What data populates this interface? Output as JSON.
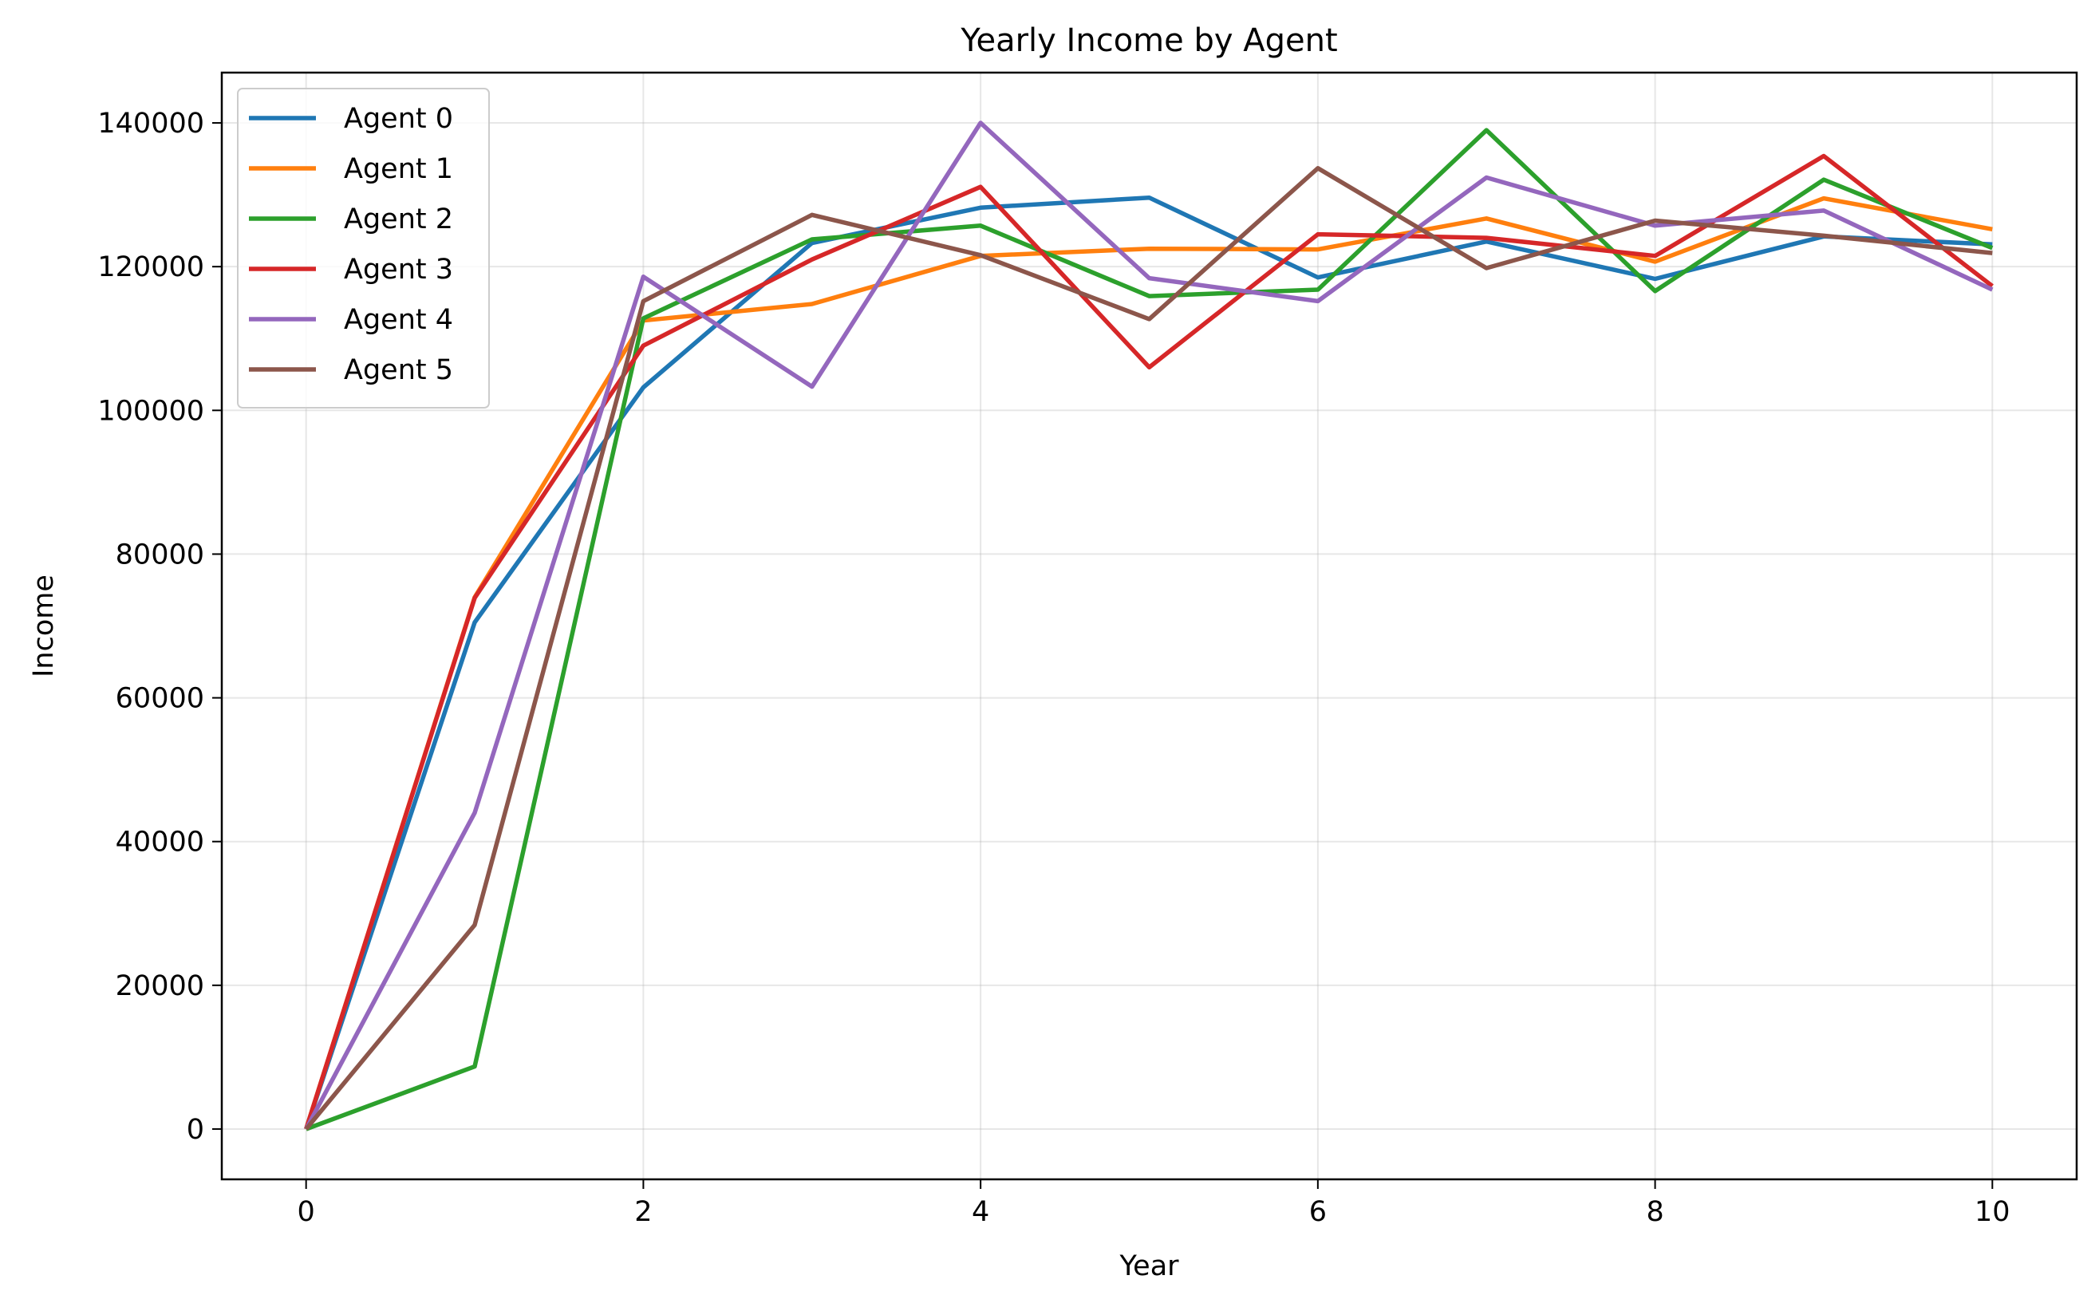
{
  "chart_data": {
    "type": "line",
    "title": "Yearly Income by Agent",
    "xlabel": "Year",
    "ylabel": "Income",
    "x": [
      0,
      1,
      2,
      3,
      4,
      5,
      6,
      7,
      8,
      9,
      10
    ],
    "xlim": [
      -0.5,
      10.5
    ],
    "ylim": [
      -7000,
      147000
    ],
    "xticks": [
      0,
      2,
      4,
      6,
      8,
      10
    ],
    "yticks": [
      0,
      20000,
      40000,
      60000,
      80000,
      100000,
      120000,
      140000
    ],
    "grid": true,
    "legend_position": "upper-left",
    "series": [
      {
        "name": "Agent 0",
        "color": "#1f77b4",
        "values": [
          0,
          70500,
          103200,
          123300,
          128200,
          129600,
          118500,
          123500,
          118300,
          124200,
          123100
        ]
      },
      {
        "name": "Agent 1",
        "color": "#ff7f0e",
        "values": [
          0,
          74000,
          112500,
          114800,
          121500,
          122500,
          122400,
          126700,
          120700,
          129500,
          125200
        ]
      },
      {
        "name": "Agent 2",
        "color": "#2ca02c",
        "values": [
          0,
          8700,
          112800,
          123800,
          125700,
          115900,
          116800,
          139000,
          116600,
          132100,
          122600
        ]
      },
      {
        "name": "Agent 3",
        "color": "#d62728",
        "values": [
          0,
          73900,
          109000,
          121000,
          131100,
          106000,
          124500,
          124000,
          121500,
          135400,
          117300
        ]
      },
      {
        "name": "Agent 4",
        "color": "#9467bd",
        "values": [
          0,
          44000,
          118600,
          103300,
          140000,
          118400,
          115200,
          132400,
          125700,
          127800,
          116800
        ]
      },
      {
        "name": "Agent 5",
        "color": "#8c564b",
        "values": [
          0,
          28400,
          115200,
          127200,
          121600,
          112700,
          133700,
          119800,
          126400,
          124300,
          121900
        ]
      }
    ]
  }
}
